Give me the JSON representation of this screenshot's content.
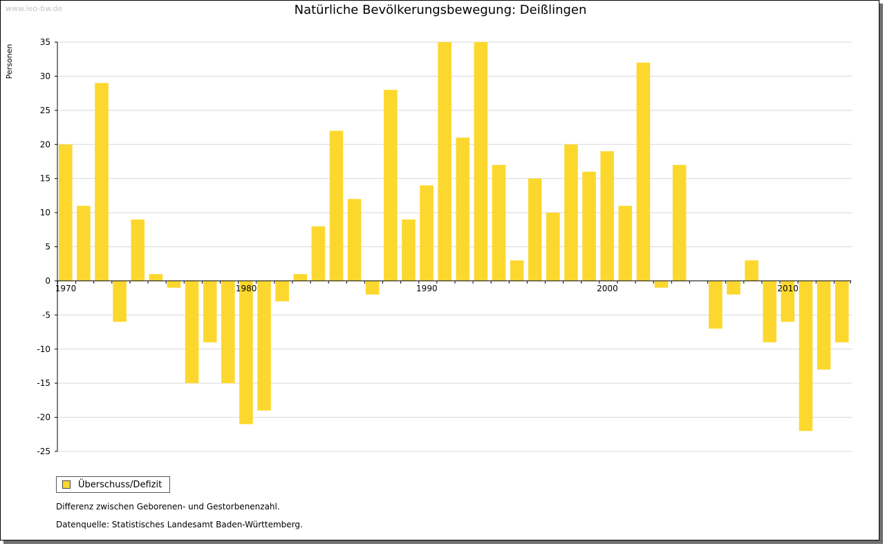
{
  "watermark": "www.leo-bw.de",
  "chart_data": {
    "type": "bar",
    "title": "Natürliche Bevölkerungsbewegung: Deißlingen",
    "ylabel": "Personen",
    "xlabel": "",
    "ylim": [
      -25,
      35
    ],
    "yticks": [
      35,
      30,
      25,
      20,
      15,
      10,
      5,
      0,
      -5,
      -10,
      -15,
      -20,
      -25
    ],
    "xtick_labels": [
      "1970",
      "1980",
      "1990",
      "2000",
      "2010"
    ],
    "grid": true,
    "legend_position": "bottom-left",
    "categories": [
      1970,
      1971,
      1972,
      1973,
      1974,
      1975,
      1976,
      1977,
      1978,
      1979,
      1980,
      1981,
      1982,
      1983,
      1984,
      1985,
      1986,
      1987,
      1988,
      1989,
      1990,
      1991,
      1992,
      1993,
      1994,
      1995,
      1996,
      1997,
      1998,
      1999,
      2000,
      2001,
      2002,
      2003,
      2004,
      2005,
      2006,
      2007,
      2008,
      2009,
      2010,
      2011,
      2012,
      2013
    ],
    "series": [
      {
        "name": "Überschuss/Defizit",
        "color": "#fcd82e",
        "values": [
          20,
          11,
          29,
          -6,
          9,
          1,
          -1,
          -15,
          -9,
          -15,
          -21,
          -19,
          -3,
          1,
          8,
          22,
          12,
          -2,
          28,
          9,
          14,
          35,
          21,
          35,
          17,
          3,
          15,
          10,
          20,
          16,
          19,
          11,
          32,
          -1,
          17,
          0,
          -7,
          -2,
          3,
          -9,
          -6,
          -22,
          -13,
          -9
        ]
      }
    ]
  },
  "notes": {
    "line1": "Differenz zwischen Geborenen- und Gestorbenenzahl.",
    "line2": "Datenquelle: Statistisches Landesamt Baden-Württemberg."
  }
}
